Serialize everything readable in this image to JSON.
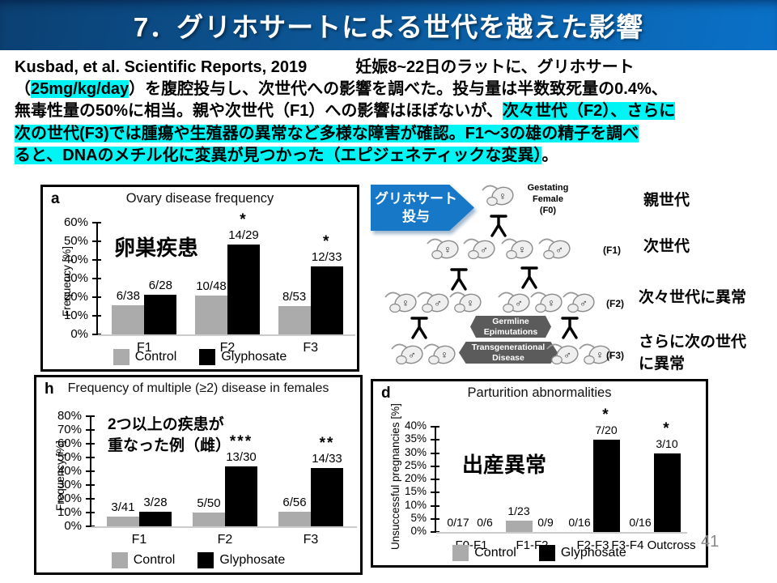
{
  "slide": {
    "title": "7．グリホサートによる世代を越えた影響",
    "page_number": "41"
  },
  "colors": {
    "title_gradient": [
      "#0b4072",
      "#0a71c8"
    ],
    "highlight_cyan": "#00f4f4",
    "arrow_blue": "#1878c8",
    "control_bar": "#ababab",
    "glyphosate_bar": "#000000",
    "badge_gray": "#5b5b5b"
  },
  "paragraph": {
    "segments": [
      {
        "text": "Kusbad, et al. Scientific Reports, 2019　　　妊娠8~22日のラットに、グリホサート\n（",
        "highlight": false
      },
      {
        "text": "25mg/kg/day",
        "highlight": true
      },
      {
        "text": "）を腹腔投与し、次世代への影響を調べた。投与量は半数致死量の0.4%、\n無毒性量の50%に相当。親や次世代（F1）への影響はほぼないが、",
        "highlight": false
      },
      {
        "text": "次々世代（F2）、さらに\n次の世代(F3)では腫瘍や生殖器の異常など多様な障害が確認。F1～3の雄の精子を調べ\nると、DNAのメチル化に変異が見つかった（エピジェネティックな変異）",
        "highlight": true
      },
      {
        "text": "。",
        "highlight": false
      }
    ]
  },
  "injection_arrow": {
    "lines": [
      "グリホサート",
      "投与"
    ]
  },
  "pedigree": {
    "f0_label": "Gestating\nFemale\n(F0)",
    "generation_labels": [
      "(F1)",
      "(F2)",
      "(F3)"
    ],
    "badges": [
      "Germline\nEpimutations",
      "Transgenerational\nDisease"
    ],
    "side_labels": [
      "親世代",
      "次世代",
      "次々世代に異常",
      "さらに次の世代\nに異常"
    ],
    "rats": {
      "f0": [
        "♀"
      ],
      "f1": [
        "♀",
        "♂",
        "♀",
        "♂"
      ],
      "f2": [
        "♀",
        "♂",
        "♀",
        "♂",
        "♀",
        "♂"
      ],
      "f3_left": [
        "♂",
        "♀"
      ],
      "f3_right": [
        "♂",
        "♀"
      ]
    }
  },
  "chart_data": [
    {
      "id": "a",
      "type": "bar",
      "panel": "a",
      "title": "Ovary disease frequency",
      "annotation": "卵巣疾患",
      "ylabel": "Frequency [%]",
      "ylim": [
        0,
        60
      ],
      "ystep": 10,
      "grid": false,
      "legend_position": "bottom",
      "categories": [
        "F1",
        "F2",
        "F3"
      ],
      "series": [
        {
          "name": "Control",
          "color": "#ababab",
          "values": [
            15.8,
            20.8,
            15.1
          ],
          "labels": [
            "6/38",
            "10/48",
            "8/53"
          ],
          "stars": [
            "",
            "",
            ""
          ]
        },
        {
          "name": "Glyphosate",
          "color": "#000000",
          "values": [
            21.4,
            48.3,
            36.4
          ],
          "labels": [
            "6/28",
            "14/29",
            "12/33"
          ],
          "stars": [
            "",
            "*",
            "*"
          ]
        }
      ]
    },
    {
      "id": "h",
      "type": "bar",
      "panel": "h",
      "title": "Frequency of multiple (≥2) disease in females",
      "annotation": "2つ以上の疾患が\n重なった例（雌）",
      "ylabel": "Frequency [%]",
      "ylim": [
        0,
        80
      ],
      "ystep": 10,
      "grid": false,
      "legend_position": "bottom",
      "categories": [
        "F1",
        "F2",
        "F3"
      ],
      "series": [
        {
          "name": "Control",
          "color": "#ababab",
          "values": [
            7.3,
            10.0,
            10.7
          ],
          "labels": [
            "3/41",
            "5/50",
            "6/56"
          ],
          "stars": [
            "",
            "",
            ""
          ]
        },
        {
          "name": "Glyphosate",
          "color": "#000000",
          "values": [
            10.7,
            43.3,
            42.4
          ],
          "labels": [
            "3/28",
            "13/30",
            "14/33"
          ],
          "stars": [
            "",
            "***",
            "**"
          ]
        }
      ]
    },
    {
      "id": "d",
      "type": "bar",
      "panel": "d",
      "title": "Parturition abnormalities",
      "annotation": "出産異常",
      "ylabel": "Unsuccessful pregnancies [%]",
      "ylim": [
        0,
        40
      ],
      "ystep": 5,
      "grid": false,
      "legend_position": "bottom",
      "categories": [
        "F0-F1",
        "F1-F2",
        "F2-F3",
        "F3-F4 Outcross"
      ],
      "series": [
        {
          "name": "Control",
          "color": "#ababab",
          "values": [
            0,
            4.3,
            0,
            0
          ],
          "labels": [
            "0/17",
            "1/23",
            "0/16",
            "0/16"
          ],
          "stars": [
            "",
            "",
            "",
            ""
          ]
        },
        {
          "name": "Glyphosate",
          "color": "#000000",
          "values": [
            0,
            0,
            35,
            30
          ],
          "labels": [
            "0/6",
            "0/9",
            "7/20",
            "3/10"
          ],
          "stars": [
            "",
            "",
            "*",
            "*"
          ]
        }
      ]
    }
  ]
}
